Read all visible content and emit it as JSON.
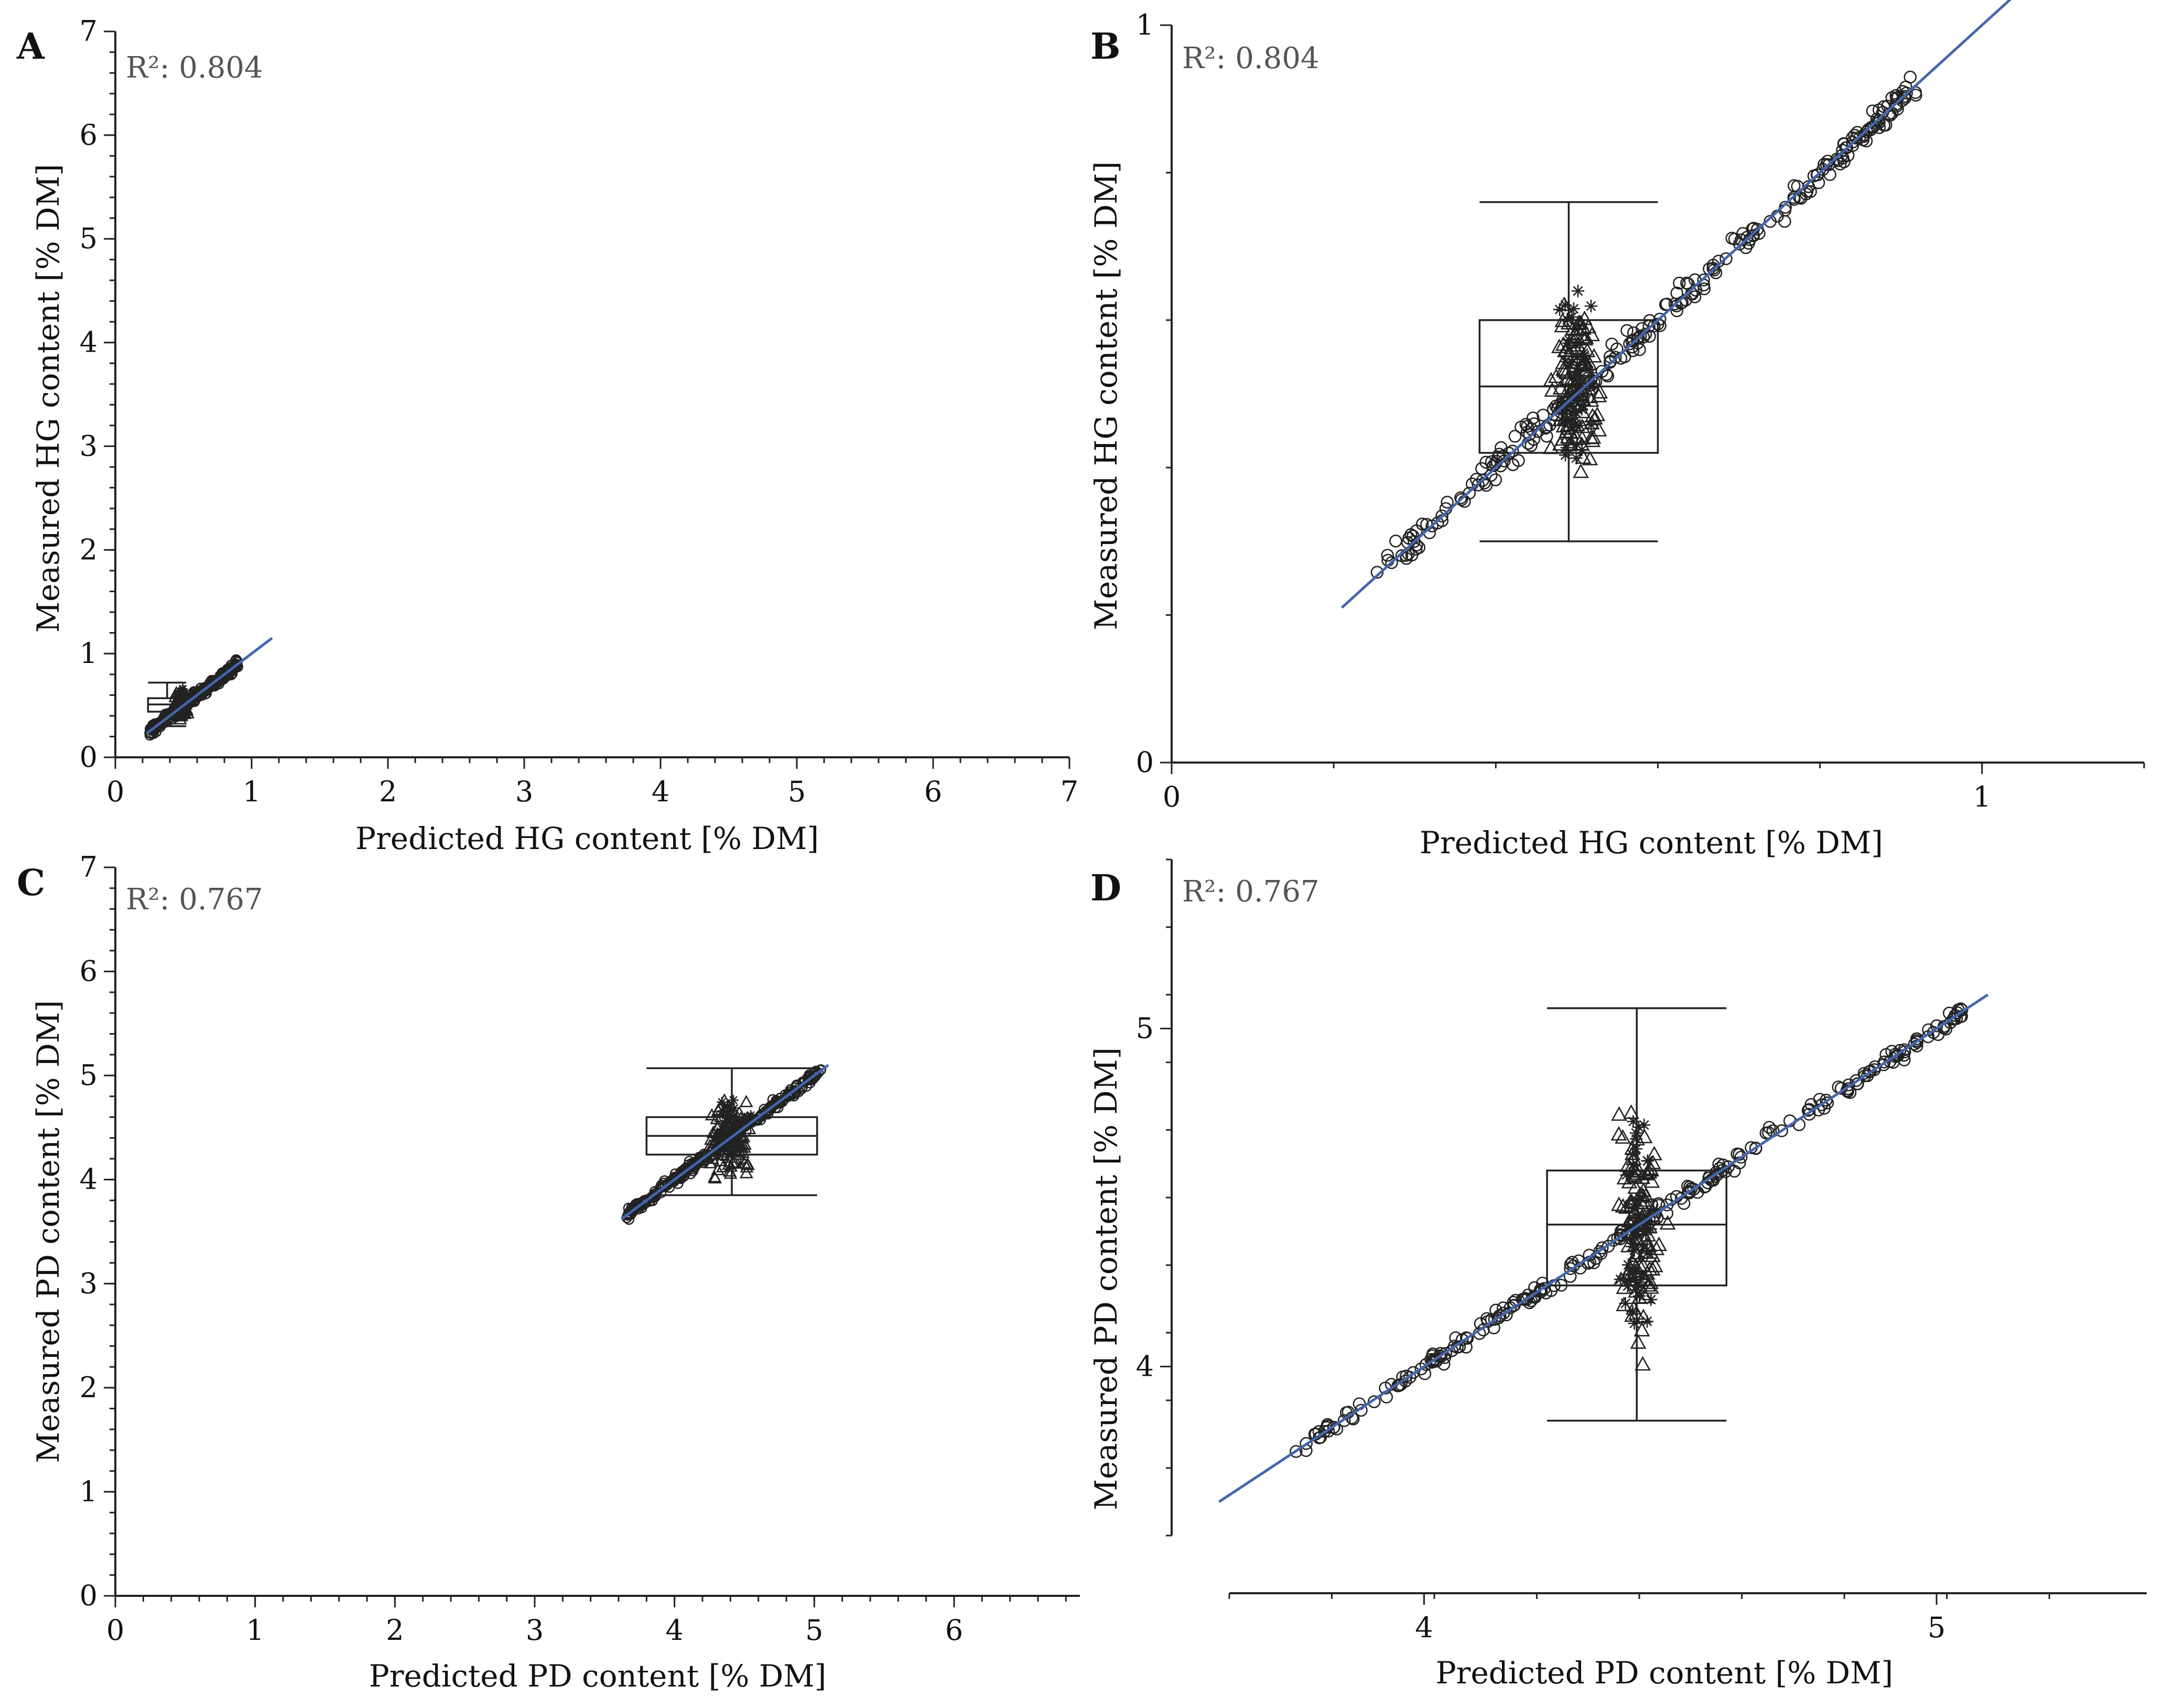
{
  "chart_data": [
    {
      "panel": "A",
      "type": "scatter",
      "r2_text": "R²: 0.804",
      "xlabel": "Predicted HG content [% DM]",
      "ylabel": "Measured HG content [% DM]",
      "xlim": [
        0,
        7
      ],
      "ylim": [
        0,
        7
      ],
      "xticks": [
        "0",
        "1",
        "2",
        "3",
        "4",
        "5",
        "6",
        "7"
      ],
      "yticks": [
        "0",
        "1",
        "2",
        "3",
        "4",
        "5",
        "6",
        "7"
      ],
      "fit_line": [
        [
          0.23,
          0.23
        ],
        [
          1.15,
          1.15
        ]
      ],
      "box": {
        "x_range": [
          0.22,
          0.56
        ],
        "box_x": [
          0.24,
          0.52
        ],
        "min": 0.3,
        "q1": 0.44,
        "median": 0.51,
        "q3": 0.57,
        "max": 0.72
      },
      "cluster": {
        "x_range": [
          0.25,
          0.9
        ],
        "spread": 0.05,
        "stars_center": 0.48
      }
    },
    {
      "panel": "B",
      "type": "scatter",
      "r2_text": "R²: 0.804",
      "xlabel": "Predicted HG content [% DM]",
      "ylabel": "Measured HG content [% DM]",
      "xlim": [
        0,
        1.2
      ],
      "ylim": [
        0,
        1.0
      ],
      "xticks": [
        "0",
        "1"
      ],
      "yticks": [
        "0",
        "1"
      ],
      "fit_line": [
        [
          0.21,
          0.21
        ],
        [
          1.13,
          1.13
        ]
      ],
      "box": {
        "x_range": [
          0.38,
          0.6
        ],
        "box_x": [
          0.38,
          0.6
        ],
        "min": 0.3,
        "q1": 0.42,
        "median": 0.51,
        "q3": 0.6,
        "max": 0.76
      },
      "cluster": {
        "x_range": [
          0.25,
          0.92
        ],
        "spread": 0.02,
        "stars_center": 0.5
      }
    },
    {
      "panel": "C",
      "type": "scatter",
      "r2_text": "R²: 0.767",
      "xlabel": "Predicted PD content [% DM]",
      "ylabel": "Measured PD content [% DM]",
      "xlim": [
        0,
        6.9
      ],
      "ylim": [
        0,
        7
      ],
      "xticks": [
        "0",
        "1",
        "2",
        "3",
        "4",
        "5",
        "6"
      ],
      "yticks": [
        "0",
        "1",
        "2",
        "3",
        "4",
        "5",
        "6",
        "7"
      ],
      "fit_line": [
        [
          3.62,
          3.62
        ],
        [
          5.1,
          5.1
        ]
      ],
      "box": {
        "x_range": [
          3.8,
          5.02
        ],
        "box_x": [
          3.8,
          5.02
        ],
        "min": 3.85,
        "q1": 4.24,
        "median": 4.42,
        "q3": 4.6,
        "max": 5.07
      },
      "cluster": {
        "x_range": [
          3.65,
          5.05
        ],
        "spread": 0.05,
        "stars_center": 4.4
      }
    },
    {
      "panel": "D",
      "type": "scatter",
      "r2_text": "R²: 0.767",
      "xlabel": "Predicted PD content [% DM]",
      "ylabel": "Measured PD content [% DM]",
      "xlim": [
        3.62,
        5.41
      ],
      "ylim": [
        3.5,
        5.5
      ],
      "xticks": [
        "4",
        "5"
      ],
      "yticks": [
        "4",
        "5"
      ],
      "fit_line": [
        [
          3.6,
          3.6
        ],
        [
          5.1,
          5.1
        ]
      ],
      "box": {
        "x_range": [
          4.24,
          4.59
        ],
        "box_x": [
          4.24,
          4.59
        ],
        "min": 3.84,
        "q1": 4.24,
        "median": 4.42,
        "q3": 4.58,
        "max": 5.06
      },
      "cluster": {
        "x_range": [
          3.75,
          5.05
        ],
        "spread": 0.025,
        "stars_center": 4.42
      }
    }
  ]
}
